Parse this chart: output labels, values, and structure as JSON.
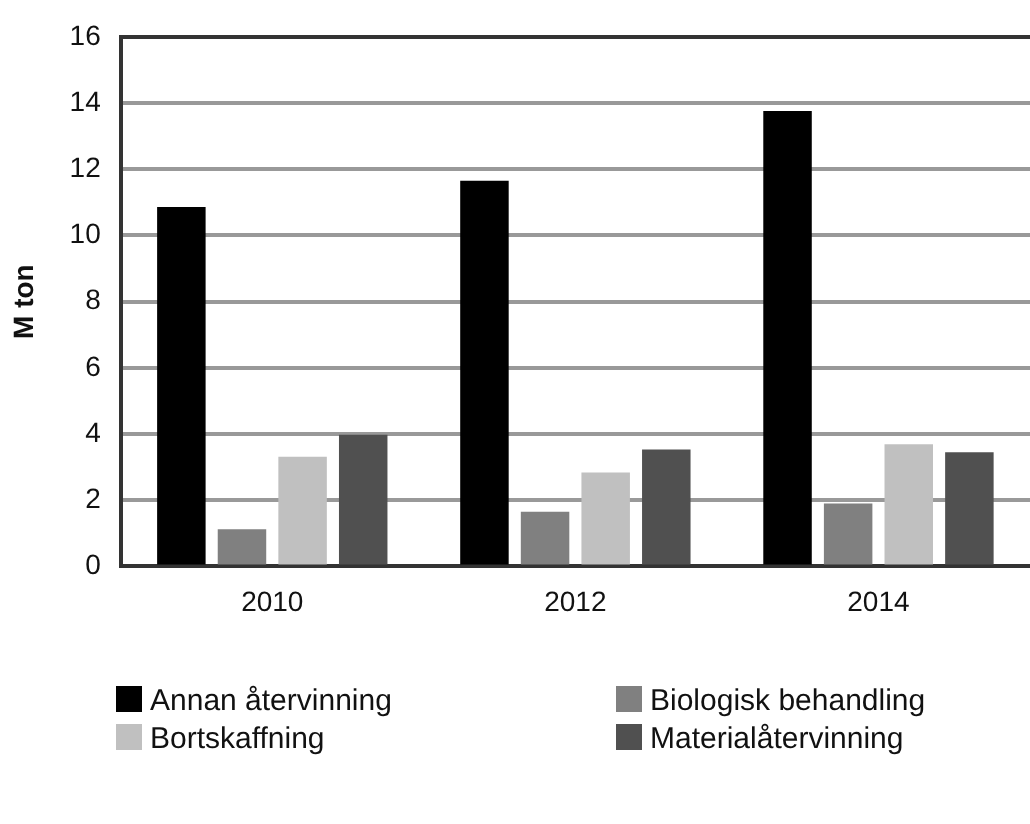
{
  "chart_data": {
    "type": "bar",
    "ylabel": "M ton",
    "categories": [
      "2010",
      "2012",
      "2014"
    ],
    "series": [
      {
        "name": "Annan återvinning",
        "color": "#000000",
        "values": [
          10.86,
          11.65,
          13.76
        ]
      },
      {
        "name": "Biologisk behandling",
        "color": "#808080",
        "values": [
          1.12,
          1.65,
          1.9
        ]
      },
      {
        "name": "Bortskaffning",
        "color": "#c0c0c0",
        "values": [
          3.31,
          2.84,
          3.69
        ]
      },
      {
        "name": "Materialåtervinning",
        "color": "#505050",
        "values": [
          3.98,
          3.53,
          3.45
        ]
      }
    ],
    "ylim": [
      0,
      16
    ],
    "yticks": [
      0,
      2,
      4,
      6,
      8,
      10,
      12,
      14,
      16
    ],
    "grid": "y",
    "legend": "bottom"
  }
}
